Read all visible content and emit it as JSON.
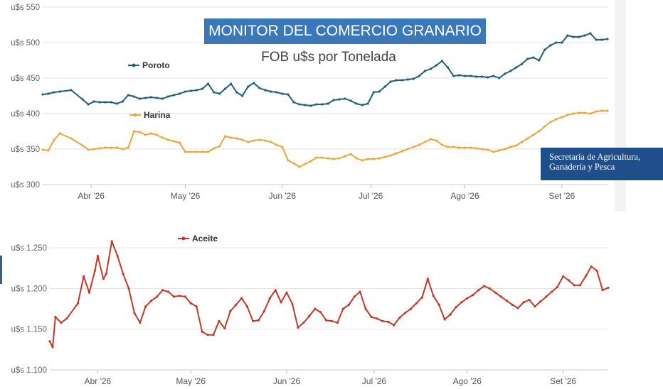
{
  "header": {
    "title": "MONITOR DEL COMERCIO GRANARIO",
    "subtitle": "FOB u$s por Tonelada",
    "agency": [
      "Secretaría de Agricultura,",
      "Ganadería y Pesca"
    ]
  },
  "chart_data": [
    {
      "type": "line",
      "yticks": [
        "u$s 550",
        "u$s 500",
        "u$s 450",
        "u$s 400",
        "u$s 350",
        "u$s 300"
      ],
      "ytick_values": [
        550,
        500,
        450,
        400,
        350,
        300
      ],
      "ylim": [
        300,
        550
      ],
      "xlim": [
        0,
        198
      ],
      "xticks": [
        "Abr '26",
        "May '26",
        "Jun '26",
        "Jul '26",
        "Ago '26",
        "Set '26"
      ],
      "xtick_positions": [
        17,
        50,
        84,
        115,
        148,
        182
      ],
      "grid": true,
      "series": [
        {
          "name": "Poroto",
          "color": "#1f5f7a",
          "x": [
            0,
            2,
            4,
            6,
            10,
            14,
            16,
            18,
            20,
            22,
            24,
            26,
            28,
            30,
            32,
            34,
            36,
            38,
            40,
            42,
            44,
            46,
            48,
            50,
            52,
            54,
            56,
            58,
            60,
            62,
            64,
            66,
            68,
            70,
            72,
            74,
            76,
            78,
            80,
            82,
            84,
            86,
            88,
            90,
            92,
            94,
            96,
            98,
            100,
            102,
            104,
            106,
            108,
            110,
            112,
            114,
            116,
            118,
            120,
            122,
            124,
            126,
            128,
            130,
            132,
            134,
            136,
            138,
            140,
            142,
            144,
            146,
            148,
            150,
            152,
            154,
            156,
            158,
            160,
            162,
            164,
            166,
            168,
            170,
            172,
            174,
            176,
            178,
            180,
            182,
            184,
            186,
            188,
            190,
            192,
            194,
            196,
            198
          ],
          "values": [
            427,
            428,
            430,
            431,
            433,
            420,
            413,
            417,
            416,
            416,
            416,
            414,
            417,
            426,
            424,
            421,
            422,
            423,
            422,
            421,
            424,
            426,
            428,
            431,
            432,
            433,
            435,
            442,
            430,
            428,
            435,
            442,
            430,
            425,
            438,
            443,
            436,
            433,
            431,
            430,
            428,
            427,
            416,
            413,
            412,
            411,
            413,
            413,
            414,
            419,
            420,
            421,
            418,
            414,
            412,
            414,
            430,
            431,
            438,
            445,
            447,
            447,
            448,
            449,
            453,
            460,
            463,
            468,
            474,
            465,
            453,
            454,
            453,
            453,
            452,
            452,
            451,
            453,
            450,
            456,
            460,
            465,
            470,
            477,
            479,
            475,
            490,
            496,
            500,
            500,
            510,
            508,
            508,
            510,
            513,
            504,
            504,
            505
          ]
        },
        {
          "name": "Harina",
          "color": "#e8a93a",
          "x": [
            0,
            2,
            4,
            6,
            10,
            14,
            16,
            18,
            20,
            22,
            24,
            26,
            28,
            30,
            32,
            34,
            36,
            38,
            40,
            42,
            44,
            46,
            48,
            50,
            52,
            54,
            56,
            58,
            60,
            62,
            64,
            66,
            68,
            70,
            72,
            74,
            76,
            78,
            80,
            82,
            84,
            86,
            88,
            90,
            92,
            94,
            96,
            98,
            100,
            102,
            104,
            106,
            108,
            110,
            112,
            114,
            116,
            118,
            120,
            122,
            124,
            126,
            128,
            130,
            132,
            134,
            136,
            138,
            140,
            142,
            144,
            146,
            148,
            150,
            152,
            154,
            156,
            158,
            160,
            162,
            164,
            166,
            168,
            170,
            172,
            174,
            176,
            178,
            180,
            182,
            184,
            186,
            188,
            190,
            192,
            194,
            196,
            198
          ],
          "values": [
            349,
            348,
            363,
            372,
            365,
            355,
            349,
            350,
            351,
            352,
            352,
            352,
            350,
            352,
            375,
            374,
            370,
            372,
            370,
            366,
            363,
            361,
            359,
            346,
            346,
            346,
            346,
            346,
            351,
            354,
            368,
            366,
            365,
            363,
            360,
            362,
            363,
            362,
            360,
            356,
            353,
            334,
            330,
            325,
            329,
            333,
            338,
            338,
            337,
            336,
            337,
            340,
            343,
            337,
            334,
            336,
            336,
            337,
            339,
            341,
            344,
            347,
            350,
            353,
            356,
            360,
            364,
            362,
            356,
            353,
            353,
            352,
            352,
            352,
            351,
            350,
            349,
            346,
            348,
            350,
            353,
            355,
            360,
            365,
            370,
            375,
            382,
            388,
            392,
            395,
            398,
            400,
            401,
            401,
            400,
            403,
            404,
            404
          ]
        }
      ]
    },
    {
      "type": "line",
      "yticks": [
        "u$s 1.250",
        "u$s 1.200",
        "u$s 1.150",
        "u$s 1.100"
      ],
      "ytick_values": [
        1250,
        1200,
        1150,
        1100
      ],
      "ylim": [
        1100,
        1265
      ],
      "xlim": [
        0,
        198
      ],
      "xticks": [
        "Abr '26",
        "May '26",
        "Jun '26",
        "Jul '26",
        "Ago '26",
        "Set '26"
      ],
      "xtick_positions": [
        17,
        50,
        84,
        115,
        148,
        182
      ],
      "grid": true,
      "series": [
        {
          "name": "Aceite",
          "color": "#c0392b",
          "x": [
            0,
            1,
            2,
            4,
            6,
            10,
            12,
            14,
            16,
            17,
            19,
            20,
            22,
            24,
            26,
            28,
            30,
            32,
            34,
            36,
            38,
            40,
            42,
            44,
            46,
            48,
            50,
            52,
            54,
            56,
            58,
            60,
            62,
            64,
            66,
            68,
            70,
            72,
            74,
            76,
            78,
            80,
            82,
            84,
            86,
            88,
            90,
            92,
            94,
            96,
            98,
            100,
            102,
            104,
            106,
            108,
            110,
            112,
            114,
            116,
            118,
            120,
            122,
            124,
            126,
            128,
            130,
            132,
            134,
            136,
            138,
            140,
            142,
            144,
            146,
            148,
            150,
            152,
            154,
            156,
            158,
            160,
            162,
            164,
            166,
            168,
            170,
            172,
            174,
            176,
            178,
            180,
            182,
            184,
            186,
            188,
            190,
            192,
            194,
            196,
            198
          ],
          "values": [
            1135,
            1128,
            1165,
            1158,
            1163,
            1182,
            1215,
            1195,
            1222,
            1240,
            1212,
            1218,
            1258,
            1240,
            1218,
            1200,
            1170,
            1158,
            1178,
            1185,
            1190,
            1198,
            1196,
            1190,
            1191,
            1190,
            1182,
            1178,
            1147,
            1143,
            1143,
            1160,
            1151,
            1172,
            1180,
            1188,
            1178,
            1160,
            1161,
            1172,
            1188,
            1198,
            1183,
            1195,
            1181,
            1152,
            1158,
            1166,
            1175,
            1171,
            1161,
            1160,
            1158,
            1175,
            1180,
            1190,
            1196,
            1175,
            1165,
            1163,
            1160,
            1159,
            1155,
            1164,
            1170,
            1175,
            1182,
            1189,
            1212,
            1191,
            1180,
            1162,
            1168,
            1177,
            1183,
            1188,
            1192,
            1198,
            1203,
            1200,
            1195,
            1190,
            1185,
            1180,
            1176,
            1183,
            1186,
            1178,
            1184,
            1190,
            1196,
            1202,
            1215,
            1210,
            1204,
            1204,
            1215,
            1227,
            1222,
            1198,
            1201
          ]
        }
      ]
    }
  ]
}
